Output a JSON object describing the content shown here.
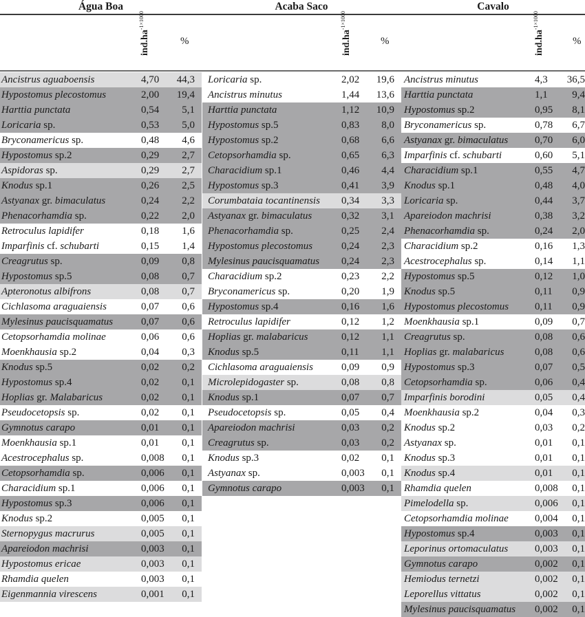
{
  "colors": {
    "dark_row": "#a7a7a9",
    "light_row": "#dcdcdd",
    "white_row": "#ffffff",
    "rule": "#3a3a3a"
  },
  "groups": [
    {
      "title": "Água Boa",
      "unit_label": "ind.ha",
      "unit_sup": "-1×1000",
      "pct_label": "%",
      "rows": [
        {
          "name": "Ancistrus aguaboensis",
          "value": "4,70",
          "pct": "44,3",
          "shade": "light"
        },
        {
          "name": "Hypostomus plecostomus",
          "value": "2,00",
          "pct": "19,4",
          "shade": "dark"
        },
        {
          "name": "Harttia punctata",
          "value": "0,54",
          "pct": "5,1",
          "shade": "dark"
        },
        {
          "name": "Loricaria sp.",
          "value": "0,53",
          "pct": "5,0",
          "shade": "dark"
        },
        {
          "name": "Bryconamericus sp.",
          "value": "0,48",
          "pct": "4,6",
          "shade": "white"
        },
        {
          "name": "Hypostomus sp.2",
          "value": "0,29",
          "pct": "2,7",
          "shade": "dark"
        },
        {
          "name": "Aspidoras sp.",
          "value": "0,29",
          "pct": "2,7",
          "shade": "light"
        },
        {
          "name": "Knodus sp.1",
          "value": "0,26",
          "pct": "2,5",
          "shade": "dark"
        },
        {
          "name": "Astyanax gr. bimaculatus",
          "value": "0,24",
          "pct": "2,2",
          "shade": "dark"
        },
        {
          "name": "Phenacorhamdia sp.",
          "value": "0,22",
          "pct": "2,0",
          "shade": "dark"
        },
        {
          "name": "Retroculus lapidifer",
          "value": "0,18",
          "pct": "1,6",
          "shade": "white"
        },
        {
          "name": "Imparfinis cf. schubarti",
          "value": "0,15",
          "pct": "1,4",
          "shade": "white"
        },
        {
          "name": "Creagrutus sp.",
          "value": "0,09",
          "pct": "0,8",
          "shade": "dark"
        },
        {
          "name": "Hypostomus sp.5",
          "value": "0,08",
          "pct": "0,7",
          "shade": "dark"
        },
        {
          "name": "Apteronotus albifrons",
          "value": "0,08",
          "pct": "0,7",
          "shade": "light"
        },
        {
          "name": "Cichlasoma araguaiensis",
          "value": "0,07",
          "pct": "0,6",
          "shade": "white"
        },
        {
          "name": "Mylesinus paucisquamatus",
          "value": "0,07",
          "pct": "0,6",
          "shade": "dark"
        },
        {
          "name": "Cetopsorhamdia molinae",
          "value": "0,06",
          "pct": "0,6",
          "shade": "white"
        },
        {
          "name": "Moenkhausia sp.2",
          "value": "0,04",
          "pct": "0,3",
          "shade": "white"
        },
        {
          "name": "Knodus sp.5",
          "value": "0,02",
          "pct": "0,2",
          "shade": "dark"
        },
        {
          "name": "Hypostomus sp.4",
          "value": "0,02",
          "pct": "0,1",
          "shade": "dark"
        },
        {
          "name": "Hoplias gr. Malabaricus",
          "value": "0,02",
          "pct": "0,1",
          "shade": "dark"
        },
        {
          "name": "Pseudocetopsis sp.",
          "value": "0,02",
          "pct": "0,1",
          "shade": "white"
        },
        {
          "name": "Gymnotus carapo",
          "value": "0,01",
          "pct": "0,1",
          "shade": "dark"
        },
        {
          "name": "Moenkhausia sp.1",
          "value": "0,01",
          "pct": "0,1",
          "shade": "white"
        },
        {
          "name": "Acestrocephalus sp.",
          "value": "0,008",
          "pct": "0,1",
          "shade": "white"
        },
        {
          "name": "Cetopsorhamdia sp.",
          "value": "0,006",
          "pct": "0,1",
          "shade": "dark"
        },
        {
          "name": "Characidium sp.1",
          "value": "0,006",
          "pct": "0,1",
          "shade": "white"
        },
        {
          "name": "Hypostomus sp.3",
          "value": "0,006",
          "pct": "0,1",
          "shade": "dark"
        },
        {
          "name": "Knodus sp.2",
          "value": "0,005",
          "pct": "0,1",
          "shade": "white"
        },
        {
          "name": "Sternopygus macrurus",
          "value": "0,005",
          "pct": "0,1",
          "shade": "light"
        },
        {
          "name": "Apareiodon machrisi",
          "value": "0,003",
          "pct": "0,1",
          "shade": "dark"
        },
        {
          "name": "Hypostomus ericae",
          "value": "0,003",
          "pct": "0,1",
          "shade": "light"
        },
        {
          "name": "Rhamdia quelen",
          "value": "0,003",
          "pct": "0,1",
          "shade": "white"
        },
        {
          "name": "Eigenmannia virescens",
          "value": "0,001",
          "pct": "0,1",
          "shade": "light"
        }
      ]
    },
    {
      "title": "Acaba Saco",
      "unit_label": "ind.ha",
      "unit_sup": "-1×1000",
      "pct_label": "%",
      "rows": [
        {
          "name": "Loricaria sp.",
          "value": "2,02",
          "pct": "19,6",
          "shade": "white"
        },
        {
          "name": "Ancistrus minutus",
          "value": "1,44",
          "pct": "13,6",
          "shade": "white"
        },
        {
          "name": "Harttia punctata",
          "value": "1,12",
          "pct": "10,9",
          "shade": "dark"
        },
        {
          "name": "Hypostomus sp.5",
          "value": "0,83",
          "pct": "8,0",
          "shade": "dark"
        },
        {
          "name": "Hypostomus sp.2",
          "value": "0,68",
          "pct": "6,6",
          "shade": "dark"
        },
        {
          "name": "Cetopsorhamdia sp.",
          "value": "0,65",
          "pct": "6,3",
          "shade": "dark"
        },
        {
          "name": "Characidium sp.1",
          "value": "0,46",
          "pct": "4,4",
          "shade": "dark"
        },
        {
          "name": "Hypostomus sp.3",
          "value": "0,41",
          "pct": "3,9",
          "shade": "dark"
        },
        {
          "name": "Corumbataia tocantinensis",
          "value": "0,34",
          "pct": "3,3",
          "shade": "light"
        },
        {
          "name": "Astyanax gr. bimaculatus",
          "value": "0,32",
          "pct": "3,1",
          "shade": "dark"
        },
        {
          "name": "Phenacorhamdia sp.",
          "value": "0,25",
          "pct": "2,4",
          "shade": "dark"
        },
        {
          "name": "Hypostomus plecostomus",
          "value": "0,24",
          "pct": "2,3",
          "shade": "dark"
        },
        {
          "name": "Mylesinus paucisquamatus",
          "value": "0,24",
          "pct": "2,3",
          "shade": "dark"
        },
        {
          "name": "Characidium sp.2",
          "value": "0,23",
          "pct": "2,2",
          "shade": "white"
        },
        {
          "name": "Bryconamericus sp.",
          "value": "0,20",
          "pct": "1,9",
          "shade": "white"
        },
        {
          "name": "Hypostomus sp.4",
          "value": "0,16",
          "pct": "1,6",
          "shade": "dark"
        },
        {
          "name": "Retroculus lapidifer",
          "value": "0,12",
          "pct": "1,2",
          "shade": "white"
        },
        {
          "name": "Hoplias gr. malabaricus",
          "value": "0,12",
          "pct": "1,1",
          "shade": "dark"
        },
        {
          "name": "Knodus sp.5",
          "value": "0,11",
          "pct": "1,1",
          "shade": "dark"
        },
        {
          "name": "Cichlasoma araguaiensis",
          "value": "0,09",
          "pct": "0,9",
          "shade": "white"
        },
        {
          "name": "Microlepidogaster sp.",
          "value": "0,08",
          "pct": "0,8",
          "shade": "light"
        },
        {
          "name": "Knodus sp.1",
          "value": "0,07",
          "pct": "0,7",
          "shade": "dark"
        },
        {
          "name": "Pseudocetopsis sp.",
          "value": "0,05",
          "pct": "0,4",
          "shade": "white"
        },
        {
          "name": "Apareiodon machrisi",
          "value": "0,03",
          "pct": "0,2",
          "shade": "dark"
        },
        {
          "name": "Creagrutus sp.",
          "value": "0,03",
          "pct": "0,2",
          "shade": "dark"
        },
        {
          "name": "Knodus sp.3",
          "value": "0,02",
          "pct": "0,1",
          "shade": "white"
        },
        {
          "name": "Astyanax sp.",
          "value": "0,003",
          "pct": "0,1",
          "shade": "white"
        },
        {
          "name": "Gymnotus carapo",
          "value": "0,003",
          "pct": "0,1",
          "shade": "dark"
        }
      ]
    },
    {
      "title": "Cavalo",
      "unit_label": "ind.ha",
      "unit_sup": "-1×1000",
      "pct_label": "%",
      "rows": [
        {
          "name": "Ancistrus minutus",
          "value": "4,3",
          "pct": "36,5",
          "shade": "white"
        },
        {
          "name": "Harttia punctata",
          "value": "1,1",
          "pct": "9,4",
          "shade": "dark"
        },
        {
          "name": "Hypostomus sp.2",
          "value": "0,95",
          "pct": "8,1",
          "shade": "dark"
        },
        {
          "name": "Bryconamericus sp.",
          "value": "0,78",
          "pct": "6,7",
          "shade": "white"
        },
        {
          "name": "Astyanax gr. bimaculatus",
          "value": "0,70",
          "pct": "6,0",
          "shade": "dark"
        },
        {
          "name": "Imparfinis cf. schubarti",
          "value": "0,60",
          "pct": "5,1",
          "shade": "white"
        },
        {
          "name": "Characidium sp.1",
          "value": "0,55",
          "pct": "4,7",
          "shade": "dark"
        },
        {
          "name": "Knodus sp.1",
          "value": "0,48",
          "pct": "4,0",
          "shade": "dark"
        },
        {
          "name": "Loricaria sp.",
          "value": "0,44",
          "pct": "3,7",
          "shade": "dark"
        },
        {
          "name": "Apareiodon machrisi",
          "value": "0,38",
          "pct": "3,2",
          "shade": "dark"
        },
        {
          "name": "Phenacorhamdia sp.",
          "value": "0,24",
          "pct": "2,0",
          "shade": "dark"
        },
        {
          "name": "Characidium sp.2",
          "value": "0,16",
          "pct": "1,3",
          "shade": "white"
        },
        {
          "name": "Acestrocephalus sp.",
          "value": "0,14",
          "pct": "1,1",
          "shade": "white"
        },
        {
          "name": "Hypostomus sp.5",
          "value": "0,12",
          "pct": "1,0",
          "shade": "dark"
        },
        {
          "name": "Knodus sp.5",
          "value": "0,11",
          "pct": "0,9",
          "shade": "dark"
        },
        {
          "name": "Hypostomus plecostomus",
          "value": "0,11",
          "pct": "0,9",
          "shade": "dark"
        },
        {
          "name": "Moenkhausia sp.1",
          "value": "0,09",
          "pct": "0,7",
          "shade": "white"
        },
        {
          "name": "Creagrutus sp.",
          "value": "0,08",
          "pct": "0,6",
          "shade": "dark"
        },
        {
          "name": "Hoplias gr. malabaricus",
          "value": "0,08",
          "pct": "0,6",
          "shade": "dark"
        },
        {
          "name": "Hypostomus sp.3",
          "value": "0,07",
          "pct": "0,5",
          "shade": "dark"
        },
        {
          "name": "Cetopsorhamdia sp.",
          "value": "0,06",
          "pct": "0,4",
          "shade": "dark"
        },
        {
          "name": "Imparfinis borodini",
          "value": "0,05",
          "pct": "0,4",
          "shade": "light"
        },
        {
          "name": "Moenkhausia sp.2",
          "value": "0,04",
          "pct": "0,3",
          "shade": "white"
        },
        {
          "name": "Knodus sp.2",
          "value": "0,03",
          "pct": "0,2",
          "shade": "white"
        },
        {
          "name": "Astyanax sp.",
          "value": "0,01",
          "pct": "0,1",
          "shade": "white"
        },
        {
          "name": "Knodus sp.3",
          "value": "0,01",
          "pct": "0,1",
          "shade": "white"
        },
        {
          "name": "Knodus sp.4",
          "value": "0,01",
          "pct": "0,1",
          "shade": "light"
        },
        {
          "name": "Rhamdia quelen",
          "value": "0,008",
          "pct": "0,1",
          "shade": "white"
        },
        {
          "name": "Pimelodella sp.",
          "value": "0,006",
          "pct": "0,1",
          "shade": "light"
        },
        {
          "name": "Cetopsorhamdia molinae",
          "value": "0,004",
          "pct": "0,1",
          "shade": "white"
        },
        {
          "name": "Hypostomus sp.4",
          "value": "0,003",
          "pct": "0,1",
          "shade": "dark"
        },
        {
          "name": "Leporinus ortomaculatus",
          "value": "0,003",
          "pct": "0,1",
          "shade": "light"
        },
        {
          "name": "Gymnotus carapo",
          "value": "0,002",
          "pct": "0,1",
          "shade": "dark"
        },
        {
          "name": "Hemiodus ternetzi",
          "value": "0,002",
          "pct": "0,1",
          "shade": "light"
        },
        {
          "name": "Leporellus vittatus",
          "value": "0,002",
          "pct": "0,1",
          "shade": "light"
        },
        {
          "name": "Mylesinus paucisquamatus",
          "value": "0,002",
          "pct": "0,1",
          "shade": "dark"
        }
      ]
    }
  ]
}
